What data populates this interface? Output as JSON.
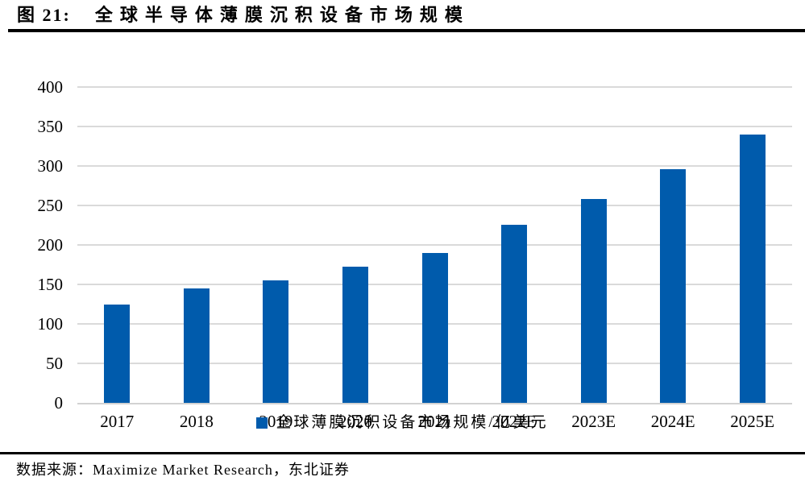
{
  "header": {
    "figure_label": "图 21:",
    "title": "全球半导体薄膜沉积设备市场规模"
  },
  "chart_data": {
    "type": "bar",
    "title": "全球半导体薄膜沉积设备市场规模",
    "categories": [
      "2017",
      "2018",
      "2019",
      "2020",
      "2021",
      "2022E",
      "2023E",
      "2024E",
      "2025E"
    ],
    "values": [
      125,
      145,
      155,
      172,
      190,
      226,
      258,
      296,
      340
    ],
    "legend": "全球薄膜沉积设备市场规模/亿美元",
    "ylabel": "",
    "xlabel": "",
    "ylim": [
      0,
      400
    ],
    "yticks": [
      0,
      50,
      100,
      150,
      200,
      250,
      300,
      350,
      400
    ],
    "grid": "horizontal",
    "legend_position": "bottom-center",
    "bar_color": "#005BAC",
    "gridline_color": "#dadada",
    "axis_line_color": "#d2d2d2"
  },
  "footer": {
    "source": "数据来源：Maximize Market Research，东北证券"
  }
}
